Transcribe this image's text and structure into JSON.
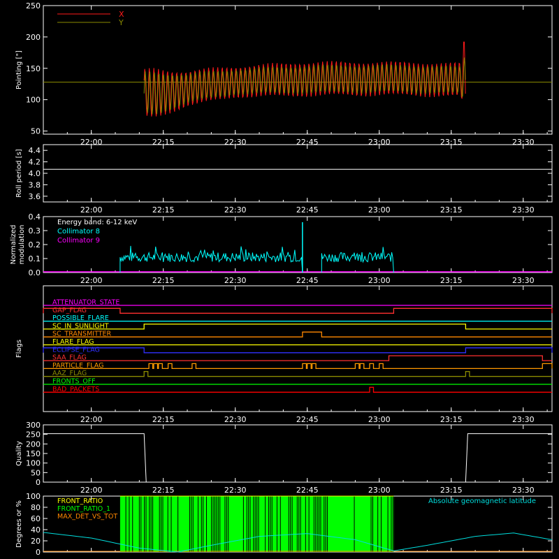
{
  "colors": {
    "background": "#000000",
    "axis": "#ffffff",
    "x_series": "#ff1a1a",
    "y_series": "#8a8a00",
    "collimator8": "#00ffff",
    "collimator9": "#ff00ff",
    "front_ratio_bars": "#00ff00",
    "geomag": "#00dddd"
  },
  "time_ticks": [
    "22:00",
    "22:15",
    "22:30",
    "22:45",
    "23:00",
    "23:15",
    "23:30"
  ],
  "chart_data": [
    {
      "id": "pointing",
      "type": "line",
      "ylabel": "Pointing [\"]",
      "ylim": [
        45,
        250
      ],
      "yticks": [
        50,
        100,
        150,
        200,
        250
      ],
      "xlim": [
        "21:50",
        "23:36"
      ],
      "legend": [
        {
          "name": "X",
          "color": "#ff1a1a"
        },
        {
          "name": "Y",
          "color": "#8a8a00"
        }
      ],
      "reference_line": 128,
      "data_start": "22:11",
      "data_end": "23:18",
      "x_envelope": {
        "time": [
          "22:11",
          "22:13",
          "22:20",
          "22:30",
          "22:45",
          "23:00",
          "23:10",
          "23:17",
          "23:18"
        ],
        "upper": [
          150,
          151,
          148,
          155,
          162,
          162,
          161,
          160,
          218
        ],
        "lower": [
          68,
          66,
          88,
          102,
          104,
          105,
          104,
          102,
          63
        ]
      },
      "y_envelope": {
        "time": [
          "22:11",
          "22:13",
          "22:20",
          "22:30",
          "22:45",
          "23:00",
          "23:10",
          "23:17",
          "23:18"
        ],
        "upper": [
          145,
          146,
          143,
          150,
          156,
          157,
          156,
          154,
          175
        ],
        "lower": [
          75,
          72,
          93,
          107,
          109,
          110,
          109,
          107,
          80
        ]
      }
    },
    {
      "id": "roll",
      "type": "line",
      "ylabel": "Roll period [s]",
      "ylim": [
        3.5,
        4.5
      ],
      "yticks": [
        3.6,
        3.8,
        4.0,
        4.2,
        4.4
      ],
      "ytick_labels": [
        "3.6",
        "3.8",
        "4.0",
        "4.2",
        "4.4"
      ],
      "constant_value": 4.07
    },
    {
      "id": "modulation",
      "type": "line",
      "ylabel_lines": [
        "Normalized",
        "modulation"
      ],
      "ylim": [
        0,
        0.4
      ],
      "yticks": [
        0,
        0.1,
        0.2,
        0.3,
        0.4
      ],
      "ytick_labels": [
        "0.0",
        "0.1",
        "0.2",
        "0.3",
        "0.4"
      ],
      "legend_header": "Energy band: 6-12 keV",
      "series": [
        {
          "name": "Collimator 8",
          "color": "#00ffff",
          "segments": [
            [
              "22:06",
              "22:44"
            ],
            [
              "22:48",
              "23:03"
            ]
          ],
          "typical": 0.11,
          "spike": {
            "time": "22:44",
            "value": 0.36
          }
        },
        {
          "name": "Collimator 9",
          "color": "#ff00ff",
          "constant_value": 0.0
        }
      ]
    },
    {
      "id": "flags",
      "type": "timeline",
      "ylabel": "Flags",
      "flags": [
        {
          "name": "ATTENUATOR_STATE",
          "color": "#ff00ff",
          "high": []
        },
        {
          "name": "GAP_FLAG",
          "color": "#ff3030",
          "high": [
            [
              "21:50",
              "22:06"
            ],
            [
              "23:03",
              "23:36"
            ]
          ]
        },
        {
          "name": "POSSIBLE_FLARE",
          "color": "#00ffff",
          "high": []
        },
        {
          "name": "SC_IN_SUNLIGHT",
          "color": "#ffff00",
          "high": [
            [
              "22:11",
              "23:18"
            ]
          ]
        },
        {
          "name": "SC_TRANSMITTER",
          "color": "#ff8800",
          "high": [
            [
              "22:44",
              "22:48"
            ]
          ]
        },
        {
          "name": "FLARE_FLAG",
          "color": "#ffff00",
          "high": []
        },
        {
          "name": "ECLIPSE_FLAG",
          "color": "#3030ff",
          "high": [
            [
              "21:50",
              "22:11"
            ],
            [
              "23:18",
              "23:36"
            ]
          ]
        },
        {
          "name": "SAA_FLAG",
          "color": "#ff3030",
          "high": [
            [
              "23:02",
              "23:34"
            ]
          ]
        },
        {
          "name": "PARTICLE_FLAG",
          "color": "#ff9900",
          "high": [
            [
              "22:12",
              "22:12"
            ],
            [
              "22:13",
              "22:13"
            ],
            [
              "22:14",
              "22:14"
            ],
            [
              "22:16",
              "22:16"
            ],
            [
              "22:21",
              "22:21"
            ],
            [
              "22:44",
              "22:44"
            ],
            [
              "22:45",
              "22:45"
            ],
            [
              "22:46",
              "22:46"
            ],
            [
              "22:55",
              "22:55"
            ],
            [
              "22:56",
              "22:56"
            ],
            [
              "22:58",
              "22:58"
            ],
            [
              "23:00",
              "23:00"
            ],
            [
              "23:34",
              "23:36"
            ]
          ]
        },
        {
          "name": "AAZ_FLAG",
          "color": "#8a8a00",
          "high": [
            [
              "22:11",
              "22:11"
            ],
            [
              "23:18",
              "23:18"
            ]
          ]
        },
        {
          "name": "FRONTS_OFF",
          "color": "#00ff00",
          "high": []
        },
        {
          "name": "BAD_PACKETS",
          "color": "#ff0000",
          "high": [
            [
              "22:58",
              "22:58"
            ]
          ]
        }
      ]
    },
    {
      "id": "quality",
      "type": "line",
      "ylabel": "Quality",
      "ylim": [
        0,
        300
      ],
      "yticks": [
        0,
        50,
        100,
        150,
        200,
        250,
        300
      ],
      "step": {
        "high": 254,
        "low": 0,
        "drop_at": "22:11",
        "rise_at": "23:18"
      }
    },
    {
      "id": "geomag",
      "type": "bar",
      "ylabel": "Degrees or %",
      "ylim": [
        0,
        100
      ],
      "yticks": [
        0,
        20,
        40,
        60,
        80,
        100
      ],
      "legend": [
        {
          "name": "FRONT_RATIO",
          "color": "#ffff00"
        },
        {
          "name": "FRONT_RATIO_1",
          "color": "#00ff00"
        },
        {
          "name": "MAX_DET_VS_TOT",
          "color": "#ff8800"
        }
      ],
      "right_label": "Absolute geomagnetic latitude",
      "bars_start": "22:06",
      "bars_end": "23:03",
      "bar_value": 100,
      "latitude_curve": {
        "time": [
          "21:50",
          "22:00",
          "22:10",
          "22:18",
          "22:25",
          "22:35",
          "22:45",
          "22:55",
          "23:03",
          "23:10",
          "23:20",
          "23:28",
          "23:36"
        ],
        "values": [
          35,
          25,
          7,
          0,
          12,
          28,
          33,
          22,
          2,
          12,
          28,
          34,
          22
        ]
      }
    }
  ]
}
